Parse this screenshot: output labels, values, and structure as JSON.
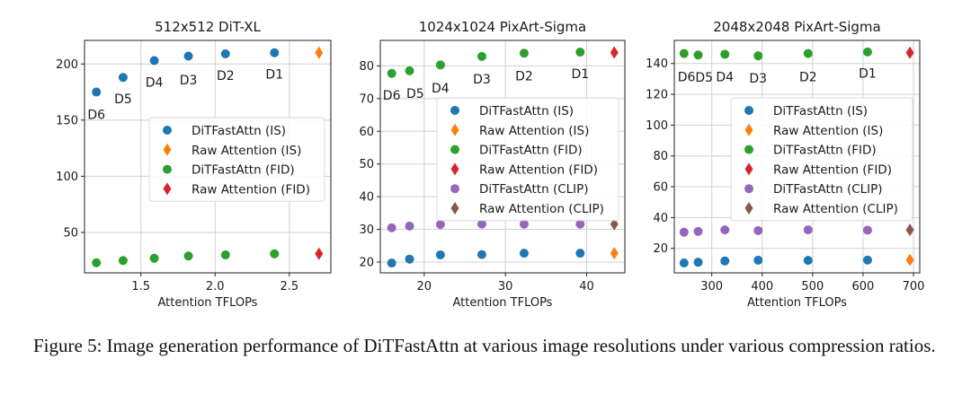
{
  "caption": "Figure 5: Image generation performance of DiTFastAttn at various image resolutions under various compression ratios.",
  "colors": {
    "DiTFastAttn (IS)": "#1f77b4",
    "Raw Attention (IS)": "#ff7f0e",
    "DiTFastAttn (FID)": "#2ca02c",
    "Raw Attention (FID)": "#d62728",
    "DiTFastAttn (CLIP)": "#9467bd",
    "Raw Attention (CLIP)": "#8c564b"
  },
  "chart_data": [
    {
      "type": "scatter",
      "title": "512x512 DiT-XL",
      "xlabel": "Attention TFLOPs",
      "ylabel": "",
      "xlim": [
        1.12,
        2.78
      ],
      "ylim": [
        14,
        221
      ],
      "xticks": [
        1.5,
        2.0,
        2.5
      ],
      "xtick_labels": [
        "1.5",
        "2.0",
        "2.5"
      ],
      "yticks": [
        50,
        100,
        150,
        200
      ],
      "ytick_labels": [
        "50",
        "100",
        "150",
        "200"
      ],
      "grid": true,
      "legend_placement": "center-right",
      "series": [
        {
          "name": "DiTFastAttn (IS)",
          "marker": "circle",
          "x": [
            1.2,
            1.38,
            1.59,
            1.82,
            2.07,
            2.4
          ],
          "y": [
            175,
            188,
            203,
            207,
            209,
            210
          ]
        },
        {
          "name": "Raw Attention (IS)",
          "marker": "diamond",
          "x": [
            2.7
          ],
          "y": [
            210
          ]
        },
        {
          "name": "DiTFastAttn (FID)",
          "marker": "circle",
          "x": [
            1.2,
            1.38,
            1.59,
            1.82,
            2.07,
            2.4
          ],
          "y": [
            23,
            25,
            27,
            29,
            30,
            31
          ]
        },
        {
          "name": "Raw Attention (FID)",
          "marker": "diamond",
          "x": [
            2.7
          ],
          "y": [
            31
          ]
        }
      ],
      "annotations": [
        {
          "text": "D6",
          "x": 1.2,
          "y": 155
        },
        {
          "text": "D5",
          "x": 1.38,
          "y": 169
        },
        {
          "text": "D4",
          "x": 1.59,
          "y": 184
        },
        {
          "text": "D3",
          "x": 1.82,
          "y": 186
        },
        {
          "text": "D2",
          "x": 2.07,
          "y": 190
        },
        {
          "text": "D1",
          "x": 2.4,
          "y": 191
        }
      ]
    },
    {
      "type": "scatter",
      "title": "1024x1024 PixArt-Sigma",
      "xlabel": "Attention TFLOPs",
      "ylabel": "",
      "xlim": [
        14.6,
        44.7
      ],
      "ylim": [
        16.7,
        87.8
      ],
      "xticks": [
        20,
        30,
        40
      ],
      "xtick_labels": [
        "20",
        "30",
        "40"
      ],
      "yticks": [
        20,
        30,
        40,
        50,
        60,
        70,
        80
      ],
      "ytick_labels": [
        "20",
        "30",
        "40",
        "50",
        "60",
        "70",
        "80"
      ],
      "grid": true,
      "legend_placement": "center-right",
      "series": [
        {
          "name": "DiTFastAttn (IS)",
          "marker": "circle",
          "x": [
            16.0,
            18.2,
            22.0,
            27.1,
            32.3,
            39.2
          ],
          "y": [
            19.7,
            20.9,
            22.2,
            22.3,
            22.7,
            22.7
          ]
        },
        {
          "name": "Raw Attention (IS)",
          "marker": "diamond",
          "x": [
            43.4
          ],
          "y": [
            22.7
          ]
        },
        {
          "name": "DiTFastAttn (FID)",
          "marker": "circle",
          "x": [
            16.0,
            18.2,
            22.0,
            27.1,
            32.3,
            39.2
          ],
          "y": [
            77.7,
            78.5,
            80.3,
            82.9,
            83.9,
            84.2
          ]
        },
        {
          "name": "Raw Attention (FID)",
          "marker": "diamond",
          "x": [
            43.4
          ],
          "y": [
            84.1
          ]
        },
        {
          "name": "DiTFastAttn (CLIP)",
          "marker": "circle",
          "x": [
            16.0,
            18.2,
            22.0,
            27.1,
            32.3,
            39.2
          ],
          "y": [
            30.5,
            31.0,
            31.5,
            31.6,
            31.6,
            31.6
          ]
        },
        {
          "name": "Raw Attention (CLIP)",
          "marker": "diamond",
          "x": [
            43.4
          ],
          "y": [
            31.6
          ]
        }
      ],
      "annotations": [
        {
          "text": "D6",
          "x": 16.0,
          "y": 71.0
        },
        {
          "text": "D5",
          "x": 18.9,
          "y": 71.6
        },
        {
          "text": "D4",
          "x": 22.0,
          "y": 73.2
        },
        {
          "text": "D3",
          "x": 27.1,
          "y": 76.0
        },
        {
          "text": "D2",
          "x": 32.3,
          "y": 77.0
        },
        {
          "text": "D1",
          "x": 39.2,
          "y": 77.7
        }
      ]
    },
    {
      "type": "scatter",
      "title": "2048x2048 PixArt-Sigma",
      "xlabel": "Attention TFLOPs",
      "ylabel": "",
      "xlim": [
        225.7,
        712.5
      ],
      "ylim": [
        4.1,
        155
      ],
      "xticks": [
        300,
        400,
        500,
        600,
        700
      ],
      "xtick_labels": [
        "300",
        "400",
        "500",
        "600",
        "700"
      ],
      "yticks": [
        20,
        40,
        60,
        80,
        100,
        120,
        140
      ],
      "ytick_labels": [
        "20",
        "40",
        "60",
        "80",
        "100",
        "120",
        "140"
      ],
      "grid": true,
      "legend_placement": "center-right",
      "series": [
        {
          "name": "DiTFastAttn (IS)",
          "marker": "circle",
          "x": [
            245,
            273,
            326,
            392,
            491,
            609
          ],
          "y": [
            10.5,
            11.0,
            11.8,
            12.3,
            12.2,
            12.4
          ]
        },
        {
          "name": "Raw Attention (IS)",
          "marker": "diamond",
          "x": [
            693
          ],
          "y": [
            12.5
          ]
        },
        {
          "name": "DiTFastAttn (FID)",
          "marker": "circle",
          "x": [
            245,
            273,
            326,
            392,
            491,
            609
          ],
          "y": [
            146.5,
            145.5,
            146.0,
            145.0,
            146.5,
            147.5
          ]
        },
        {
          "name": "Raw Attention (FID)",
          "marker": "diamond",
          "x": [
            693
          ],
          "y": [
            147.0
          ]
        },
        {
          "name": "DiTFastAttn (CLIP)",
          "marker": "circle",
          "x": [
            245,
            273,
            326,
            392,
            491,
            609
          ],
          "y": [
            30.5,
            31.0,
            32.0,
            31.5,
            32.0,
            31.8
          ]
        },
        {
          "name": "Raw Attention (CLIP)",
          "marker": "diamond",
          "x": [
            693
          ],
          "y": [
            32.0
          ]
        }
      ],
      "annotations": [
        {
          "text": "D6",
          "x": 250,
          "y": 131.5
        },
        {
          "text": "D5",
          "x": 285,
          "y": 131.0
        },
        {
          "text": "D4",
          "x": 326,
          "y": 131.5
        },
        {
          "text": "D3",
          "x": 392,
          "y": 130.5
        },
        {
          "text": "D2",
          "x": 491,
          "y": 131.5
        },
        {
          "text": "D1",
          "x": 609,
          "y": 133.6
        }
      ]
    }
  ]
}
